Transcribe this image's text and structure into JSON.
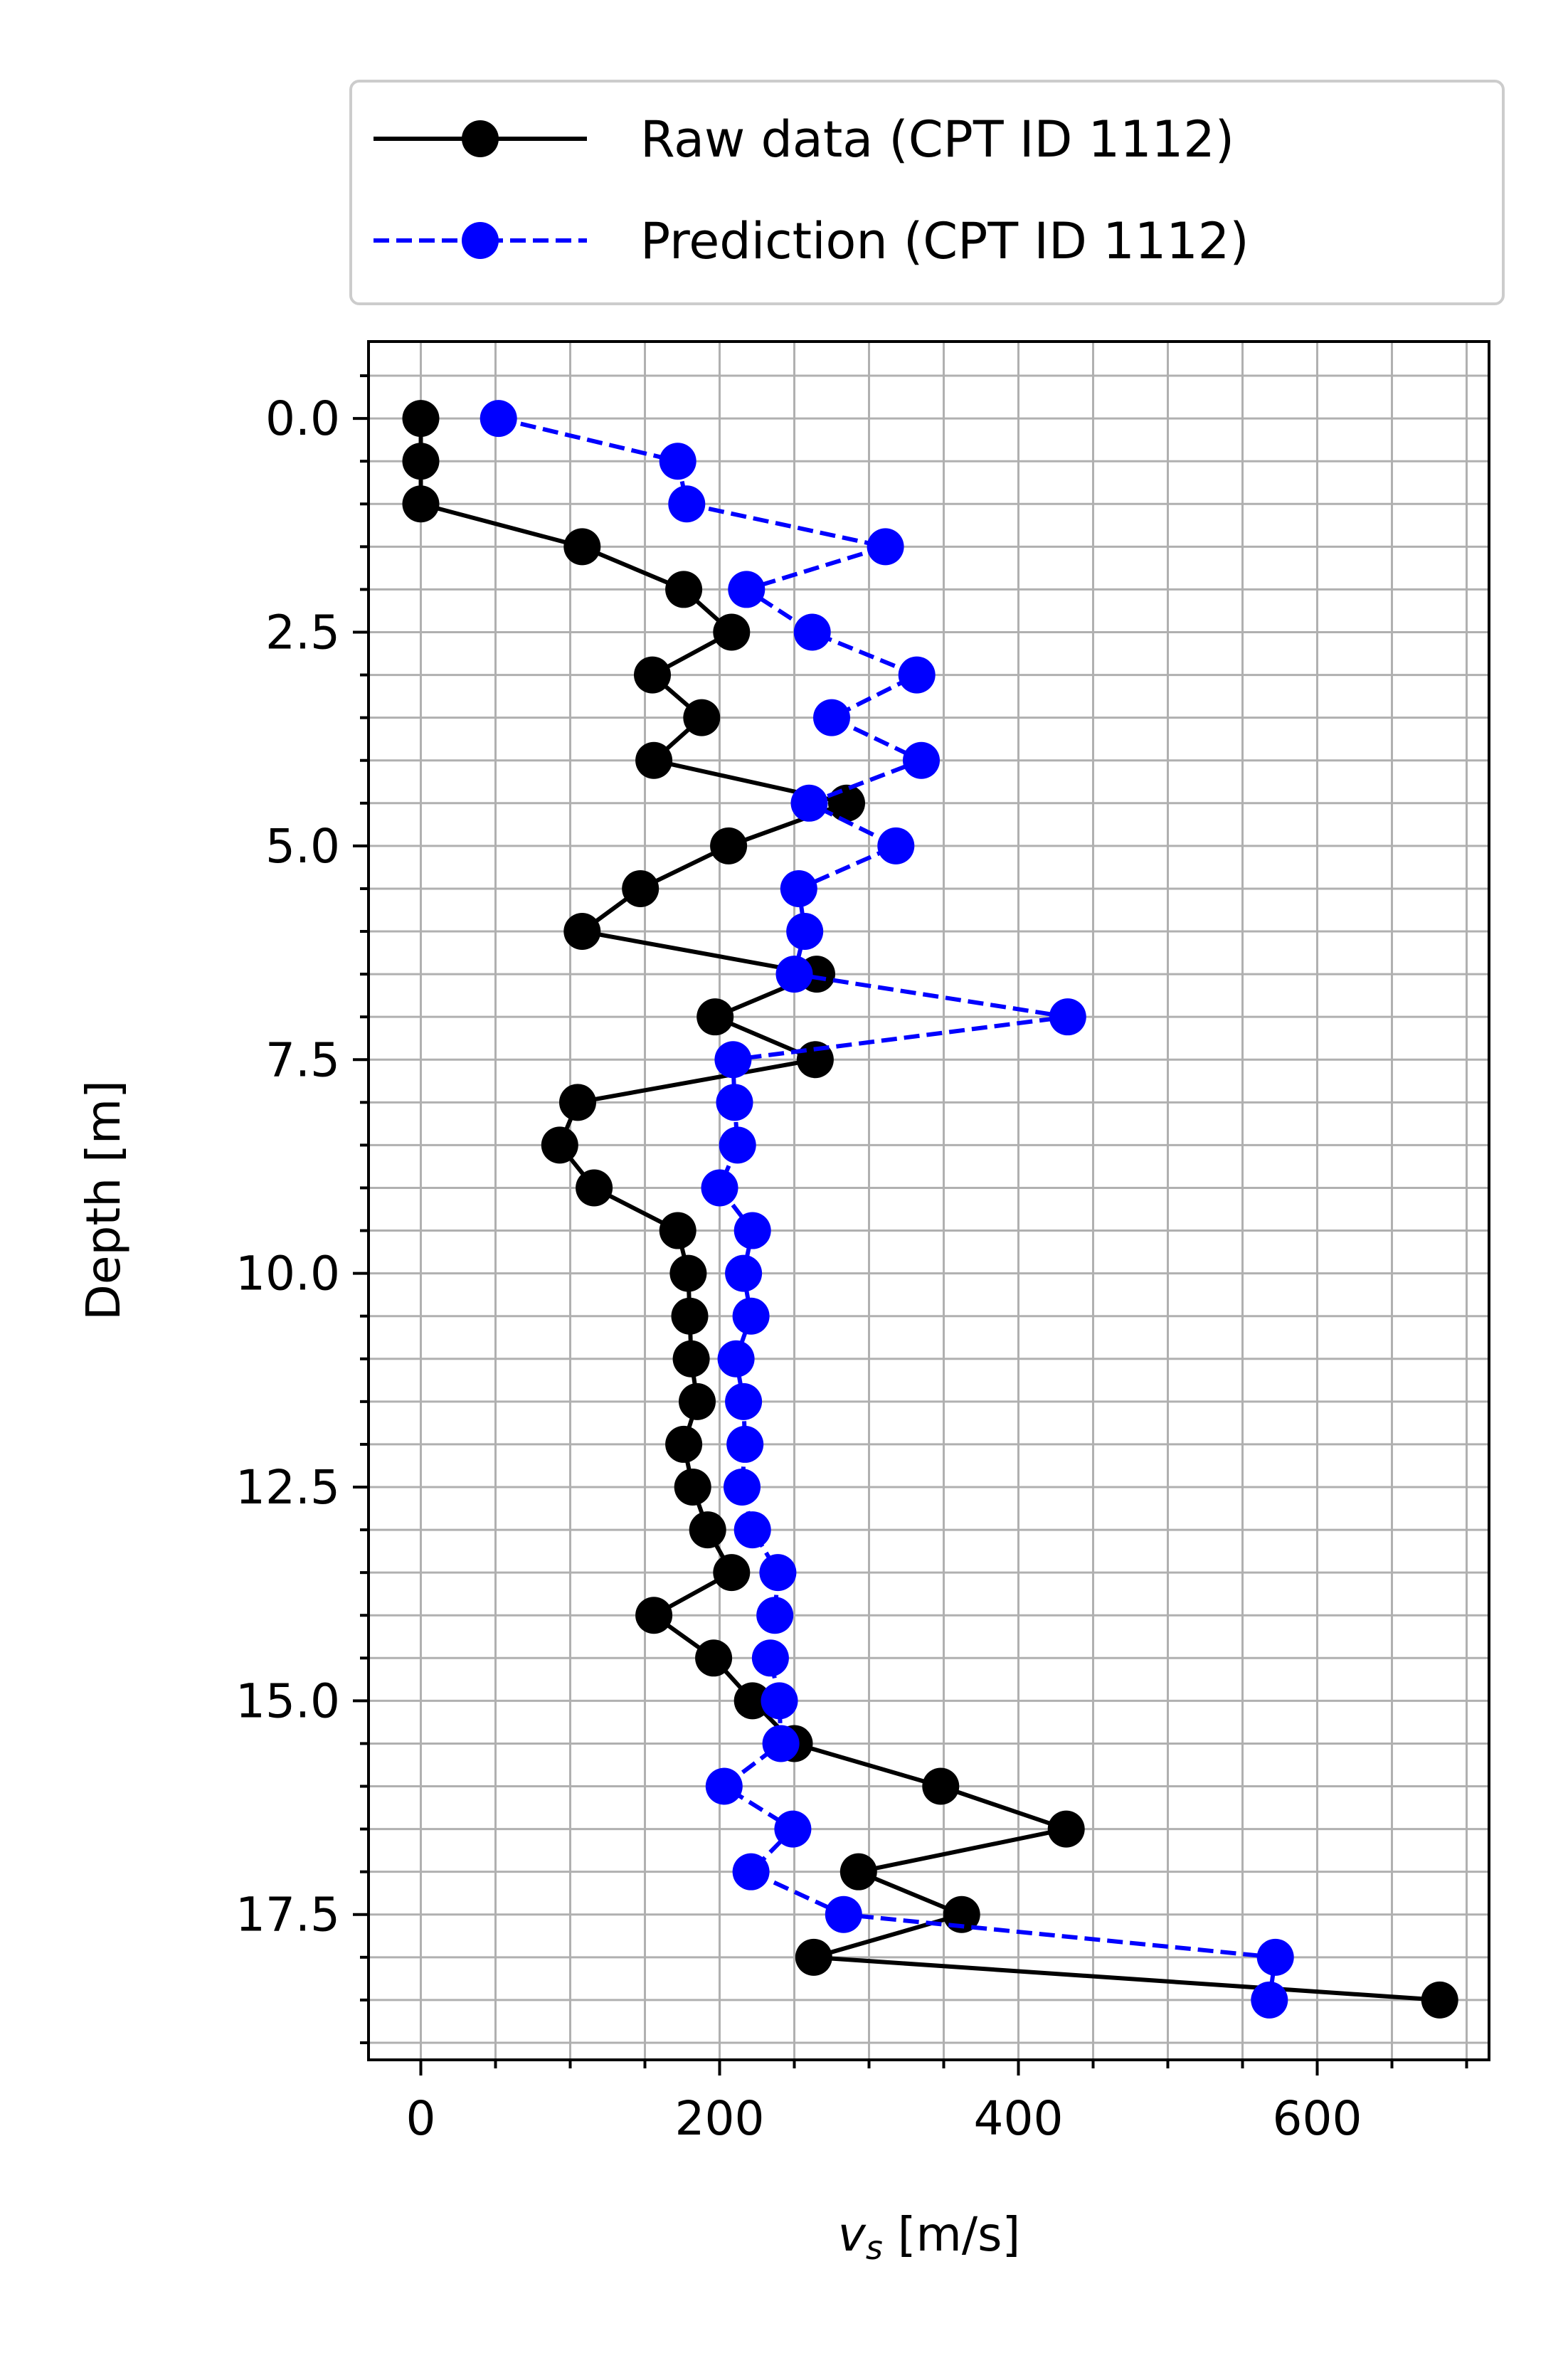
{
  "chart_data": {
    "type": "line",
    "title": "",
    "xlabel_main": "v",
    "xlabel_sub": "s",
    "xlabel_unit": " [m/s]",
    "ylabel": "Depth [m]",
    "xlim": [
      -35,
      715
    ],
    "ylim": [
      19.2,
      -0.9
    ],
    "y_inverted": true,
    "x_major_ticks": [
      0,
      200,
      400,
      600
    ],
    "x_tick_labels": [
      "0",
      "200",
      "400",
      "600"
    ],
    "x_minor_step": 50,
    "y_major_ticks": [
      0,
      2.5,
      5,
      7.5,
      10,
      12.5,
      15,
      17.5
    ],
    "y_tick_labels": [
      "0.0",
      "2.5",
      "5.0",
      "7.5",
      "10.0",
      "12.5",
      "15.0",
      "17.5"
    ],
    "y_minor_step": 0.5,
    "grid": "major and minor",
    "legend_position": "above plot, top-right",
    "series": [
      {
        "name": "Raw data (CPT ID 1112)",
        "color": "#000000",
        "line_style": "solid",
        "marker": "circle",
        "points": [
          [
            0,
            0.0
          ],
          [
            0,
            0.5
          ],
          [
            0,
            1.0
          ],
          [
            108,
            1.5
          ],
          [
            176,
            2.0
          ],
          [
            208,
            2.5
          ],
          [
            155,
            3.0
          ],
          [
            188,
            3.5
          ],
          [
            156,
            4.0
          ],
          [
            285,
            4.5
          ],
          [
            206,
            5.0
          ],
          [
            147,
            5.5
          ],
          [
            108,
            6.0
          ],
          [
            265,
            6.5
          ],
          [
            197,
            7.0
          ],
          [
            264,
            7.5
          ],
          [
            105,
            8.0
          ],
          [
            93,
            8.5
          ],
          [
            116,
            9.0
          ],
          [
            172,
            9.5
          ],
          [
            179,
            10.0
          ],
          [
            180,
            10.5
          ],
          [
            181,
            11.0
          ],
          [
            185,
            11.5
          ],
          [
            176,
            12.0
          ],
          [
            182,
            12.5
          ],
          [
            192,
            13.0
          ],
          [
            208,
            13.5
          ],
          [
            156,
            14.0
          ],
          [
            196,
            14.5
          ],
          [
            222,
            15.0
          ],
          [
            250,
            15.5
          ],
          [
            348,
            16.0
          ],
          [
            432,
            16.5
          ],
          [
            293,
            17.0
          ],
          [
            362,
            17.5
          ],
          [
            263,
            18.0
          ],
          [
            682,
            18.5
          ]
        ]
      },
      {
        "name": "Prediction (CPT ID 1112)",
        "color": "#0000ff",
        "line_style": "dashed",
        "marker": "circle",
        "points": [
          [
            52,
            0.0
          ],
          [
            172,
            0.5
          ],
          [
            178,
            1.0
          ],
          [
            311,
            1.5
          ],
          [
            218,
            2.0
          ],
          [
            262,
            2.5
          ],
          [
            332,
            3.0
          ],
          [
            275,
            3.5
          ],
          [
            335,
            4.0
          ],
          [
            260,
            4.5
          ],
          [
            318,
            5.0
          ],
          [
            253,
            5.5
          ],
          [
            257,
            6.0
          ],
          [
            250,
            6.5
          ],
          [
            433,
            7.0
          ],
          [
            209,
            7.5
          ],
          [
            210,
            8.0
          ],
          [
            212,
            8.5
          ],
          [
            200,
            9.0
          ],
          [
            222,
            9.5
          ],
          [
            216,
            10.0
          ],
          [
            221,
            10.5
          ],
          [
            211,
            11.0
          ],
          [
            216,
            11.5
          ],
          [
            217,
            12.0
          ],
          [
            215,
            12.5
          ],
          [
            222,
            13.0
          ],
          [
            239,
            13.5
          ],
          [
            237,
            14.0
          ],
          [
            234,
            14.5
          ],
          [
            240,
            15.0
          ],
          [
            241,
            15.5
          ],
          [
            203,
            16.0
          ],
          [
            249,
            16.5
          ],
          [
            221,
            17.0
          ],
          [
            283,
            17.5
          ],
          [
            572,
            18.0
          ],
          [
            568,
            18.5
          ]
        ]
      }
    ]
  }
}
